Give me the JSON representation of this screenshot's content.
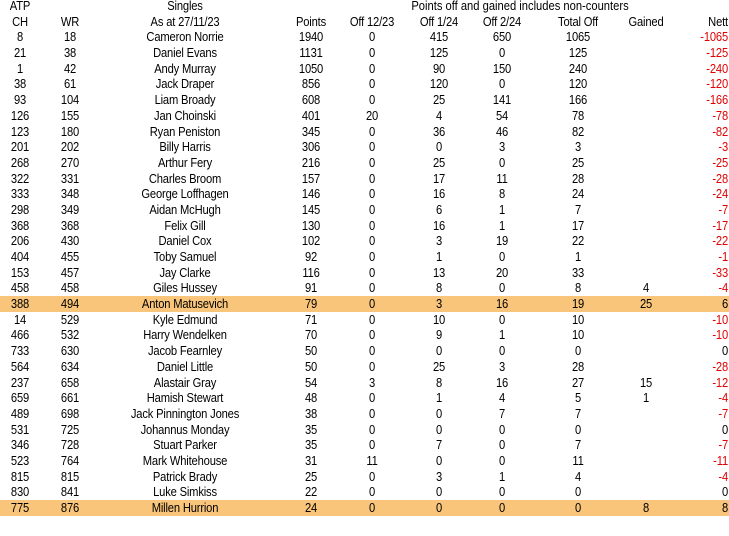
{
  "header": {
    "row1": {
      "atp": "ATP",
      "singles": "Singles",
      "note": "Points off and gained includes non-counters"
    },
    "row2": [
      "CH",
      "WR",
      "As at 27/11/23",
      "Points",
      "Off 12/23",
      "Off 1/24",
      "Off 2/24",
      "Total Off",
      "Gained",
      "Nett"
    ]
  },
  "colors": {
    "highlight": "#f9c57a",
    "negative": "#e00000"
  },
  "rows": [
    {
      "cells": [
        "8",
        "18",
        "Cameron Norrie",
        "1940",
        "0",
        "415",
        "650",
        "1065",
        "",
        "-1065"
      ]
    },
    {
      "cells": [
        "21",
        "38",
        "Daniel Evans",
        "1131",
        "0",
        "125",
        "0",
        "125",
        "",
        "-125"
      ]
    },
    {
      "cells": [
        "1",
        "42",
        "Andy Murray",
        "1050",
        "0",
        "90",
        "150",
        "240",
        "",
        "-240"
      ]
    },
    {
      "cells": [
        "38",
        "61",
        "Jack Draper",
        "856",
        "0",
        "120",
        "0",
        "120",
        "",
        "-120"
      ]
    },
    {
      "cells": [
        "93",
        "104",
        "Liam Broady",
        "608",
        "0",
        "25",
        "141",
        "166",
        "",
        "-166"
      ]
    },
    {
      "cells": [
        "126",
        "155",
        "Jan Choinski",
        "401",
        "20",
        "4",
        "54",
        "78",
        "",
        "-78"
      ]
    },
    {
      "cells": [
        "123",
        "180",
        "Ryan Peniston",
        "345",
        "0",
        "36",
        "46",
        "82",
        "",
        "-82"
      ]
    },
    {
      "cells": [
        "201",
        "202",
        "Billy Harris",
        "306",
        "0",
        "0",
        "3",
        "3",
        "",
        "-3"
      ]
    },
    {
      "cells": [
        "268",
        "270",
        "Arthur Fery",
        "216",
        "0",
        "25",
        "0",
        "25",
        "",
        "-25"
      ]
    },
    {
      "cells": [
        "322",
        "331",
        "Charles Broom",
        "157",
        "0",
        "17",
        "11",
        "28",
        "",
        "-28"
      ]
    },
    {
      "cells": [
        "333",
        "348",
        "George Loffhagen",
        "146",
        "0",
        "16",
        "8",
        "24",
        "",
        "-24"
      ]
    },
    {
      "cells": [
        "298",
        "349",
        "Aidan McHugh",
        "145",
        "0",
        "6",
        "1",
        "7",
        "",
        "-7"
      ]
    },
    {
      "cells": [
        "368",
        "368",
        "Felix Gill",
        "130",
        "0",
        "16",
        "1",
        "17",
        "",
        "-17"
      ]
    },
    {
      "cells": [
        "206",
        "430",
        "Daniel Cox",
        "102",
        "0",
        "3",
        "19",
        "22",
        "",
        "-22"
      ]
    },
    {
      "cells": [
        "404",
        "455",
        "Toby Samuel",
        "92",
        "0",
        "1",
        "0",
        "1",
        "",
        "-1"
      ]
    },
    {
      "cells": [
        "153",
        "457",
        "Jay Clarke",
        "116",
        "0",
        "13",
        "20",
        "33",
        "",
        "-33"
      ]
    },
    {
      "cells": [
        "458",
        "458",
        "Giles Hussey",
        "91",
        "0",
        "8",
        "0",
        "8",
        "4",
        "-4"
      ]
    },
    {
      "cells": [
        "388",
        "494",
        "Anton Matusevich",
        "79",
        "0",
        "3",
        "16",
        "19",
        "25",
        "6"
      ],
      "highlight": true
    },
    {
      "cells": [
        "14",
        "529",
        "Kyle Edmund",
        "71",
        "0",
        "10",
        "0",
        "10",
        "",
        "-10"
      ]
    },
    {
      "cells": [
        "466",
        "532",
        "Harry Wendelken",
        "70",
        "0",
        "9",
        "1",
        "10",
        "",
        "-10"
      ]
    },
    {
      "cells": [
        "733",
        "630",
        "Jacob Fearnley",
        "50",
        "0",
        "0",
        "0",
        "0",
        "",
        "0"
      ]
    },
    {
      "cells": [
        "564",
        "634",
        "Daniel Little",
        "50",
        "0",
        "25",
        "3",
        "28",
        "",
        "-28"
      ]
    },
    {
      "cells": [
        "237",
        "658",
        "Alastair Gray",
        "54",
        "3",
        "8",
        "16",
        "27",
        "15",
        "-12"
      ]
    },
    {
      "cells": [
        "659",
        "661",
        "Hamish Stewart",
        "48",
        "0",
        "1",
        "4",
        "5",
        "1",
        "-4"
      ]
    },
    {
      "cells": [
        "489",
        "698",
        "Jack Pinnington Jones",
        "38",
        "0",
        "0",
        "7",
        "7",
        "",
        "-7"
      ]
    },
    {
      "cells": [
        "531",
        "725",
        "Johannus Monday",
        "35",
        "0",
        "0",
        "0",
        "0",
        "",
        "0"
      ]
    },
    {
      "cells": [
        "346",
        "728",
        "Stuart Parker",
        "35",
        "0",
        "7",
        "0",
        "7",
        "",
        "-7"
      ]
    },
    {
      "cells": [
        "523",
        "764",
        "Mark Whitehouse",
        "31",
        "11",
        "0",
        "0",
        "11",
        "",
        "-11"
      ]
    },
    {
      "cells": [
        "815",
        "815",
        "Patrick Brady",
        "25",
        "0",
        "3",
        "1",
        "4",
        "",
        "-4"
      ]
    },
    {
      "cells": [
        "830",
        "841",
        "Luke Simkiss",
        "22",
        "0",
        "0",
        "0",
        "0",
        "",
        "0"
      ]
    },
    {
      "cells": [
        "775",
        "876",
        "Millen Hurrion",
        "24",
        "0",
        "0",
        "0",
        "0",
        "8",
        "8"
      ],
      "highlight": true
    }
  ]
}
